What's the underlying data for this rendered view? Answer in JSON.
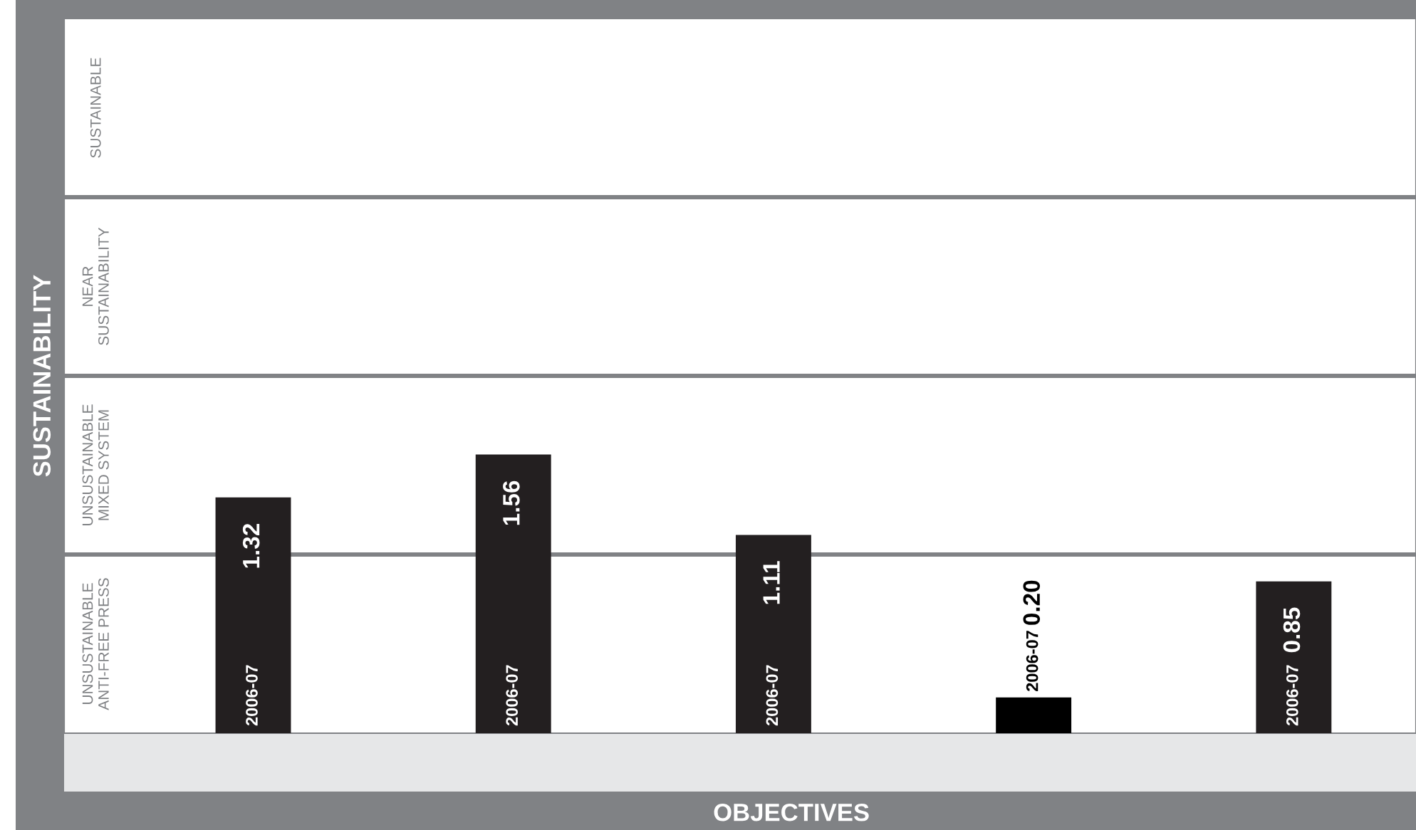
{
  "chart_data": {
    "type": "bar",
    "xlabel": "OBJECTIVES",
    "ylabel": "SUSTAINABILITY",
    "categories": [
      null,
      null,
      null,
      null,
      null
    ],
    "series": [
      {
        "name": "2006-07",
        "colors": [
          "#231f20",
          "#231f20",
          "#231f20",
          "#000000",
          "#231f20"
        ],
        "values": [
          1.32,
          1.56,
          1.11,
          0.2,
          0.85
        ],
        "value_labels": [
          "1.32",
          "1.56",
          "1.11",
          "0.20",
          "0.85"
        ]
      }
    ],
    "ylim": [
      0,
      4
    ],
    "annotations": [
      "UNSUSTAINABLE\nANTI-FREE PRESS",
      "UNSUSTAINABLE\nMIXED SYSTEM",
      "NEAR\nSUSTAINABILITY",
      "SUSTAINABLE"
    ],
    "ref_lines": [
      {
        "axis": "y",
        "value": 1,
        "color": "#808285"
      },
      {
        "axis": "y",
        "value": 2,
        "color": "#808285"
      },
      {
        "axis": "y",
        "value": 3,
        "color": "#808285"
      }
    ],
    "tick_labels": false
  }
}
